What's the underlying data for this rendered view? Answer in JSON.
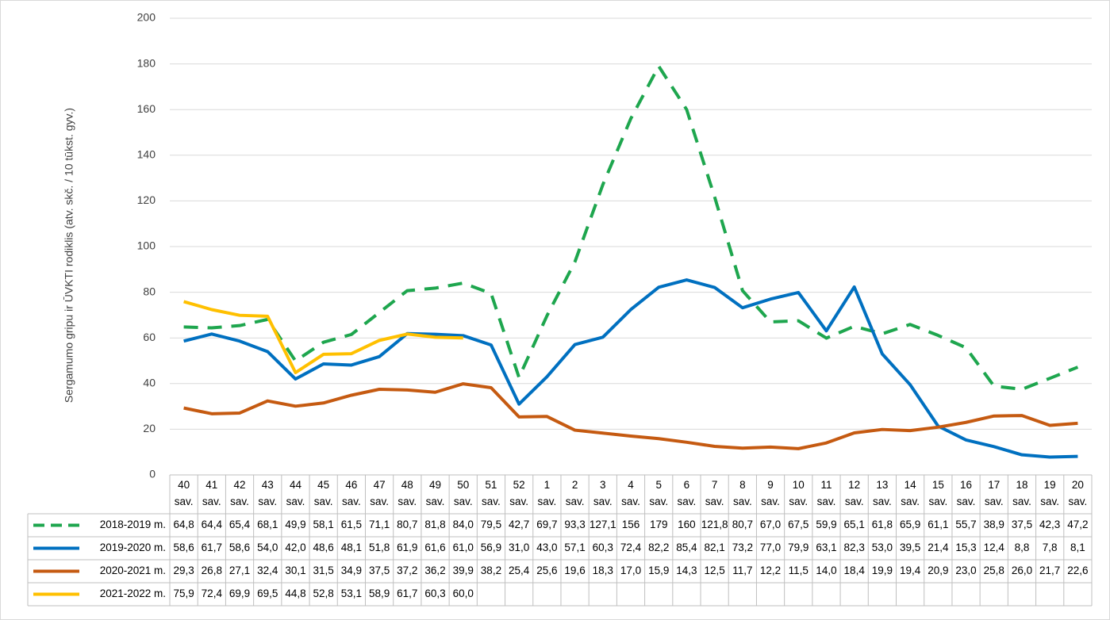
{
  "chart_data": {
    "type": "line",
    "y_label": "Sergamumo gripu ir ŪVKTI rodiklis (atv. skč. / 10 tūkst. gyv.)",
    "categories": [
      "40 sav.",
      "41 sav.",
      "42 sav.",
      "43 sav.",
      "44 sav.",
      "45 sav.",
      "46 sav.",
      "47 sav.",
      "48 sav.",
      "49 sav.",
      "50 sav.",
      "51 sav.",
      "52 sav.",
      "1 sav.",
      "2 sav.",
      "3 sav.",
      "4 sav.",
      "5 sav.",
      "6 sav.",
      "7 sav.",
      "8 sav.",
      "9 sav.",
      "10 sav.",
      "11 sav.",
      "12 sav.",
      "13 sav.",
      "14 sav.",
      "15 sav.",
      "16 sav.",
      "17 sav.",
      "18 sav.",
      "19 sav.",
      "20 sav."
    ],
    "ylim": [
      0,
      200
    ],
    "yticks": [
      0,
      20,
      40,
      60,
      80,
      100,
      120,
      140,
      160,
      180,
      200
    ],
    "grid": true,
    "series": [
      {
        "name": "2018-2019 m.",
        "color": "#1ea64e",
        "dashed": true,
        "values": [
          64.8,
          64.4,
          65.4,
          68.1,
          49.9,
          58.1,
          61.5,
          71.1,
          80.7,
          81.8,
          84.0,
          79.5,
          42.7,
          69.7,
          93.3,
          127.1,
          156,
          179,
          160,
          121.8,
          80.7,
          67.0,
          67.5,
          59.9,
          65.1,
          61.8,
          65.9,
          61.1,
          55.7,
          38.9,
          37.5,
          42.3,
          47.2
        ],
        "value_labels": [
          "64,8",
          "64,4",
          "65,4",
          "68,1",
          "49,9",
          "58,1",
          "61,5",
          "71,1",
          "80,7",
          "81,8",
          "84,0",
          "79,5",
          "42,7",
          "69,7",
          "93,3",
          "127,1",
          "156",
          "179",
          "160",
          "121,8",
          "80,7",
          "67,0",
          "67,5",
          "59,9",
          "65,1",
          "61,8",
          "65,9",
          "61,1",
          "55,7",
          "38,9",
          "37,5",
          "42,3",
          "47,2"
        ]
      },
      {
        "name": "2019-2020 m.",
        "color": "#0070c0",
        "values": [
          58.6,
          61.7,
          58.6,
          54.0,
          42.0,
          48.6,
          48.1,
          51.8,
          61.9,
          61.6,
          61.0,
          56.9,
          31.0,
          43.0,
          57.1,
          60.3,
          72.4,
          82.2,
          85.4,
          82.1,
          73.2,
          77.0,
          79.9,
          63.1,
          82.3,
          53.0,
          39.5,
          21.4,
          15.3,
          12.4,
          8.8,
          7.8,
          8.1
        ],
        "value_labels": [
          "58,6",
          "61,7",
          "58,6",
          "54,0",
          "42,0",
          "48,6",
          "48,1",
          "51,8",
          "61,9",
          "61,6",
          "61,0",
          "56,9",
          "31,0",
          "43,0",
          "57,1",
          "60,3",
          "72,4",
          "82,2",
          "85,4",
          "82,1",
          "73,2",
          "77,0",
          "79,9",
          "63,1",
          "82,3",
          "53,0",
          "39,5",
          "21,4",
          "15,3",
          "12,4",
          "8,8",
          "7,8",
          "8,1"
        ]
      },
      {
        "name": "2020-2021 m.",
        "color": "#c55a11",
        "values": [
          29.3,
          26.8,
          27.1,
          32.4,
          30.1,
          31.5,
          34.9,
          37.5,
          37.2,
          36.2,
          39.9,
          38.2,
          25.4,
          25.6,
          19.6,
          18.3,
          17.0,
          15.9,
          14.3,
          12.5,
          11.7,
          12.2,
          11.5,
          14.0,
          18.4,
          19.9,
          19.4,
          20.9,
          23.0,
          25.8,
          26.0,
          21.7,
          22.6
        ],
        "value_labels": [
          "29,3",
          "26,8",
          "27,1",
          "32,4",
          "30,1",
          "31,5",
          "34,9",
          "37,5",
          "37,2",
          "36,2",
          "39,9",
          "38,2",
          "25,4",
          "25,6",
          "19,6",
          "18,3",
          "17,0",
          "15,9",
          "14,3",
          "12,5",
          "11,7",
          "12,2",
          "11,5",
          "14,0",
          "18,4",
          "19,9",
          "19,4",
          "20,9",
          "23,0",
          "25,8",
          "26,0",
          "21,7",
          "22,6"
        ]
      },
      {
        "name": "2021-2022 m.",
        "color": "#ffc000",
        "values": [
          75.9,
          72.4,
          69.9,
          69.5,
          44.8,
          52.8,
          53.1,
          58.9,
          61.7,
          60.3,
          60.0,
          null,
          null,
          null,
          null,
          null,
          null,
          null,
          null,
          null,
          null,
          null,
          null,
          null,
          null,
          null,
          null,
          null,
          null,
          null,
          null,
          null,
          null
        ],
        "value_labels": [
          "75,9",
          "72,4",
          "69,9",
          "69,5",
          "44,8",
          "52,8",
          "53,1",
          "58,9",
          "61,7",
          "60,3",
          "60,0",
          null,
          null,
          null,
          null,
          null,
          null,
          null,
          null,
          null,
          null,
          null,
          null,
          null,
          null,
          null,
          null,
          null,
          null,
          null,
          null,
          null,
          null
        ]
      }
    ]
  }
}
